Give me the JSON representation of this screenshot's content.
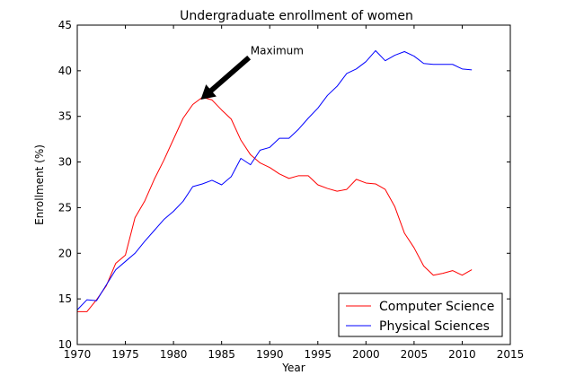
{
  "chart_data": {
    "type": "line",
    "title": "Undergraduate enrollment of women",
    "xlabel": "Year",
    "ylabel": "Enrollment (%)",
    "xlim": [
      1970,
      2015
    ],
    "ylim": [
      10,
      45
    ],
    "xticks": [
      1970,
      1975,
      1980,
      1985,
      1990,
      1995,
      2000,
      2005,
      2010,
      2015
    ],
    "yticks": [
      10,
      15,
      20,
      25,
      30,
      35,
      40,
      45
    ],
    "grid": false,
    "legend_position": "lower-right",
    "x": [
      1970,
      1971,
      1972,
      1973,
      1974,
      1975,
      1976,
      1977,
      1978,
      1979,
      1980,
      1981,
      1982,
      1983,
      1984,
      1985,
      1986,
      1987,
      1988,
      1989,
      1990,
      1991,
      1992,
      1993,
      1994,
      1995,
      1996,
      1997,
      1998,
      1999,
      2000,
      2001,
      2002,
      2003,
      2004,
      2005,
      2006,
      2007,
      2008,
      2009,
      2010,
      2011
    ],
    "series": [
      {
        "name": "Computer Science",
        "color": "#ff0000",
        "values": [
          13.6,
          13.6,
          14.9,
          16.4,
          18.9,
          19.8,
          23.9,
          25.7,
          28.1,
          30.2,
          32.5,
          34.8,
          36.3,
          37.1,
          36.8,
          35.7,
          34.7,
          32.4,
          30.8,
          29.9,
          29.4,
          28.7,
          28.2,
          28.5,
          28.5,
          27.5,
          27.1,
          26.8,
          27.0,
          28.1,
          27.7,
          27.6,
          27.0,
          25.1,
          22.2,
          20.6,
          18.6,
          17.6,
          17.8,
          18.1,
          17.6,
          18.2
        ]
      },
      {
        "name": "Physical Sciences",
        "color": "#0000ff",
        "values": [
          13.8,
          14.9,
          14.8,
          16.5,
          18.2,
          19.1,
          20.0,
          21.3,
          22.5,
          23.7,
          24.6,
          25.7,
          27.3,
          27.6,
          28.0,
          27.5,
          28.4,
          30.4,
          29.7,
          31.3,
          31.6,
          32.6,
          32.6,
          33.6,
          34.8,
          35.9,
          37.3,
          38.3,
          39.7,
          40.2,
          41.0,
          42.2,
          41.1,
          41.7,
          42.1,
          41.6,
          40.8,
          40.7,
          40.7,
          40.7,
          40.2,
          40.1
        ]
      }
    ],
    "annotations": [
      {
        "text": "Maximum",
        "xy": [
          1982.9,
          36.9
        ],
        "xytext": [
          1988,
          42.2
        ]
      }
    ]
  }
}
